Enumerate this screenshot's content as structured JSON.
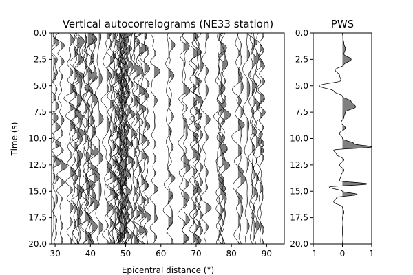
{
  "chart_data": [
    {
      "type": "line",
      "subtype": "wiggle-traces",
      "title": "Vertical autocorrelograms (NE33 station)",
      "xlabel": "Epicentral distance (°)",
      "ylabel": "Time (s)",
      "xlim": [
        29,
        95
      ],
      "ylim": [
        20.0,
        0.0
      ],
      "y_inverted": true,
      "xticks": [
        30,
        40,
        50,
        60,
        70,
        80,
        90
      ],
      "yticks": [
        "0.0",
        "2.5",
        "5.0",
        "7.5",
        "10.0",
        "12.5",
        "15.0",
        "17.5",
        "20.0"
      ],
      "positive_fill_color": "#808080",
      "line_color": "#000000",
      "trace_distances": [
        29.5,
        30.1,
        31.6,
        34.3,
        35.5,
        36.2,
        36.6,
        36.9,
        38.4,
        38.8,
        39.3,
        40.0,
        40.4,
        40.9,
        42.4,
        44.6,
        45.6,
        46.3,
        46.9,
        47.5,
        47.9,
        48.2,
        48.4,
        48.6,
        48.8,
        49.0,
        49.2,
        49.4,
        49.6,
        49.8,
        50.0,
        50.2,
        50.4,
        50.7,
        51.5,
        52.3,
        53.1,
        53.8,
        54.5,
        55.3,
        56.0,
        58.1,
        62.1,
        62.8,
        66.4,
        67.0,
        69.2,
        69.9,
        70.4,
        71.1,
        72.7,
        76.4,
        76.9,
        77.4,
        78.0,
        81.9,
        82.6,
        84.4,
        85.8,
        86.3,
        87.0,
        88.0,
        88.6
      ]
    },
    {
      "type": "line",
      "subtype": "stacked-trace",
      "title": "PWS",
      "xlim": [
        -1,
        1
      ],
      "ylim": [
        20.0,
        0.0
      ],
      "y_inverted": true,
      "xticks": [
        "-1",
        "0",
        "1"
      ],
      "yticks": [
        "0.0",
        "2.5",
        "5.0",
        "7.5",
        "10.0",
        "12.5",
        "15.0",
        "17.5",
        "20.0"
      ],
      "positive_fill_color": "#808080",
      "line_color": "#000000",
      "t": [
        0,
        0.5,
        1.0,
        1.5,
        2.0,
        2.5,
        3.0,
        3.5,
        4.0,
        4.5,
        5.0,
        5.5,
        6.0,
        6.5,
        7.0,
        7.5,
        8.0,
        8.5,
        9.0,
        9.5,
        10.0,
        10.5,
        10.8,
        11.1,
        11.5,
        12.0,
        12.5,
        13.0,
        13.5,
        14.0,
        14.3,
        14.6,
        15.0,
        15.3,
        15.6,
        16.0,
        16.5,
        17.0,
        17.5,
        18.0,
        18.5,
        19.0,
        19.5,
        20.0
      ],
      "amplitude": [
        0.0,
        0.02,
        0.05,
        0.1,
        0.05,
        0.3,
        0.05,
        -0.25,
        -0.1,
        -0.05,
        -0.8,
        -0.3,
        0.0,
        0.3,
        0.45,
        0.1,
        0.05,
        -0.05,
        0.1,
        -0.1,
        0.0,
        0.4,
        1.0,
        -0.3,
        -0.2,
        0.05,
        -0.1,
        0.05,
        -0.05,
        -0.1,
        0.85,
        -0.45,
        0.0,
        0.5,
        -0.2,
        -0.3,
        0.0,
        0.05,
        0.0,
        0.02,
        0.0,
        0.0,
        0.02,
        0.0
      ]
    }
  ]
}
